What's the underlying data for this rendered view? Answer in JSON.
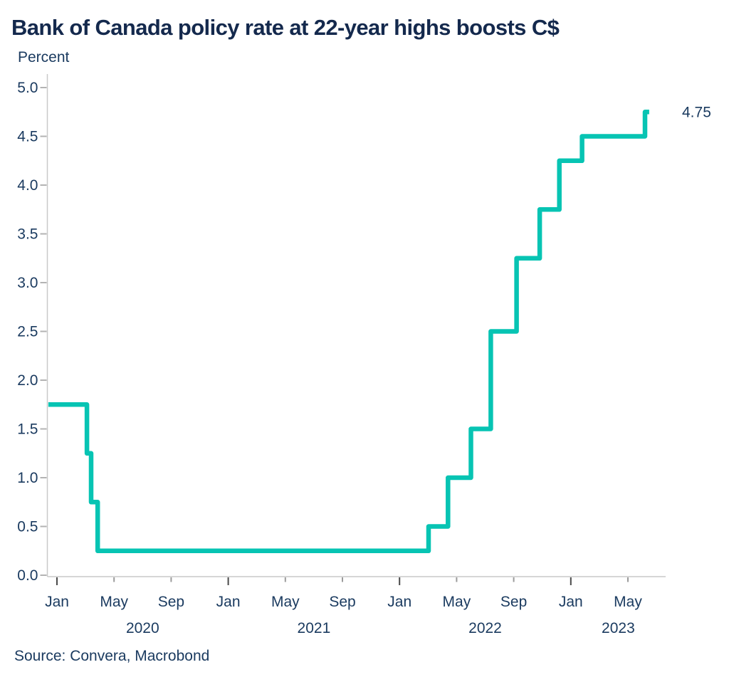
{
  "header": {
    "title": "Bank of Canada policy rate at 22-year highs boosts C$",
    "unit_label": "Percent"
  },
  "footer": {
    "source_text": "Source: Convera, Macrobond"
  },
  "colors": {
    "line": "#07c4b3",
    "title_text": "#14294d",
    "axis_text": "#1a3a5f",
    "axis_line": "#c9c9c9",
    "y_tick": "#b3b3b3",
    "x_tick_major": "#4a4a4a",
    "x_tick_minor": "#9b9b9b",
    "end_label": "#0fc8b8"
  },
  "chart_data": {
    "type": "line",
    "step_mode": "step-after",
    "title": "Bank of Canada policy rate at 22-year highs boosts C$",
    "xlabel": "",
    "ylabel": "Percent",
    "ylim": [
      0.0,
      5.0
    ],
    "ytick_step": 0.5,
    "ytick_labels": [
      "0.0",
      "0.5",
      "1.0",
      "1.5",
      "2.0",
      "2.5",
      "3.0",
      "3.5",
      "4.0",
      "4.5",
      "5.0"
    ],
    "grid": false,
    "legend": "none",
    "x_month_ticks": [
      {
        "label": "Jan",
        "date": "2020-01-01",
        "major": true
      },
      {
        "label": "May",
        "date": "2020-05-01",
        "major": false
      },
      {
        "label": "Sep",
        "date": "2020-09-01",
        "major": false
      },
      {
        "label": "Jan",
        "date": "2021-01-01",
        "major": true
      },
      {
        "label": "May",
        "date": "2021-05-01",
        "major": false
      },
      {
        "label": "Sep",
        "date": "2021-09-01",
        "major": false
      },
      {
        "label": "Jan",
        "date": "2022-01-01",
        "major": true
      },
      {
        "label": "May",
        "date": "2022-05-01",
        "major": false
      },
      {
        "label": "Sep",
        "date": "2022-09-01",
        "major": false
      },
      {
        "label": "Jan",
        "date": "2023-01-01",
        "major": true
      },
      {
        "label": "May",
        "date": "2023-05-01",
        "major": false
      }
    ],
    "x_year_labels": [
      {
        "label": "2020",
        "span_start": "2020-01-01",
        "span_end": "2021-01-01"
      },
      {
        "label": "2021",
        "span_start": "2021-01-01",
        "span_end": "2022-01-01"
      },
      {
        "label": "2022",
        "span_start": "2022-01-01",
        "span_end": "2023-01-01"
      },
      {
        "label": "2023",
        "span_start": "2023-01-01",
        "span_end": "axis-end"
      }
    ],
    "series": [
      {
        "name": "Bank of Canada policy rate",
        "color": "#07c4b3",
        "points": [
          {
            "date": "2019-12-13",
            "value": 1.75
          },
          {
            "date": "2020-03-04",
            "value": 1.25
          },
          {
            "date": "2020-03-13",
            "value": 0.75
          },
          {
            "date": "2020-03-27",
            "value": 0.25
          },
          {
            "date": "2022-03-02",
            "value": 0.5
          },
          {
            "date": "2022-04-13",
            "value": 1.0
          },
          {
            "date": "2022-06-01",
            "value": 1.5
          },
          {
            "date": "2022-07-13",
            "value": 2.5
          },
          {
            "date": "2022-09-07",
            "value": 3.25
          },
          {
            "date": "2022-10-26",
            "value": 3.75
          },
          {
            "date": "2022-12-07",
            "value": 4.25
          },
          {
            "date": "2023-01-25",
            "value": 4.5
          },
          {
            "date": "2023-06-07",
            "value": 4.75
          },
          {
            "date": "2023-06-16",
            "value": 4.75
          }
        ]
      }
    ],
    "end_label": {
      "text": "4.75",
      "value": 4.75
    }
  }
}
